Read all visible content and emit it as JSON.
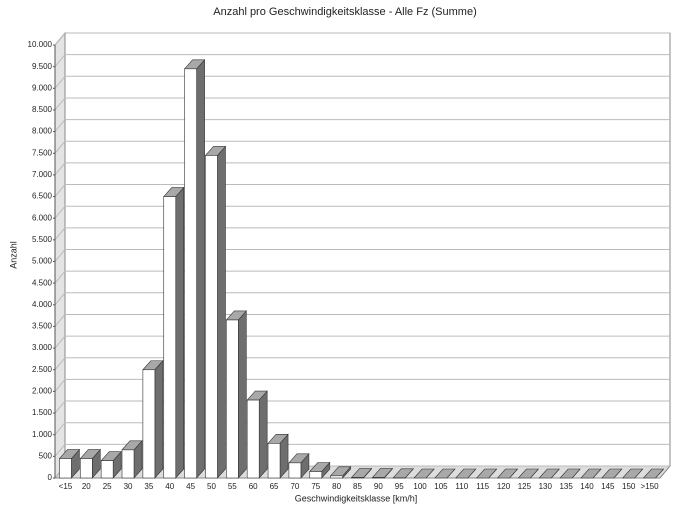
{
  "chart_data": {
    "type": "bar3d",
    "title": "Anzahl pro Geschwindigkeitsklasse - Alle Fz (Summe)",
    "x_label": "Geschwindigkeitsklasse [km/h]",
    "y_label": "Anzahl",
    "categories": [
      "<15",
      "20",
      "25",
      "30",
      "35",
      "40",
      "45",
      "50",
      "55",
      "60",
      "65",
      "70",
      "75",
      "80",
      "85",
      "90",
      "95",
      "100",
      "105",
      "110",
      "115",
      "120",
      "125",
      "130",
      "135",
      "140",
      "145",
      "150",
      ">150"
    ],
    "values": [
      450,
      450,
      400,
      650,
      2500,
      6500,
      9450,
      7450,
      3650,
      1800,
      800,
      350,
      150,
      50,
      10,
      10,
      5,
      0,
      0,
      0,
      0,
      0,
      0,
      0,
      0,
      0,
      0,
      0,
      0
    ],
    "color": "#ffffff",
    "side_color": "#6e6e6e",
    "top_color": "#a8a8a8",
    "ylim": [
      0,
      10000
    ],
    "yticks": [
      0,
      {
        "value": 500,
        "label": "500"
      },
      {
        "value": 1000,
        "label": "1.000"
      },
      {
        "value": 1500,
        "label": "1.500"
      },
      {
        "value": 2000,
        "label": "2.000"
      },
      {
        "value": 2500,
        "label": "2.500"
      },
      {
        "value": 3000,
        "label": "3.000"
      },
      {
        "value": 3500,
        "label": "3.500"
      },
      {
        "value": 4000,
        "label": "4.000"
      },
      {
        "value": 4500,
        "label": "4.500"
      },
      {
        "value": 5000,
        "label": "5.000"
      },
      {
        "value": 5500,
        "label": "5.500"
      },
      {
        "value": 6000,
        "label": "6.000"
      },
      {
        "value": 6500,
        "label": "6.500"
      },
      {
        "value": 7000,
        "label": "7.000"
      },
      {
        "value": 7500,
        "label": "7.500"
      },
      {
        "value": 8000,
        "label": "8.000"
      },
      {
        "value": 8500,
        "label": "8.500"
      },
      {
        "value": 9000,
        "label": "9.000"
      },
      {
        "value": 9500,
        "label": "9.500"
      },
      {
        "value": 10000,
        "label": "10.000"
      }
    ],
    "grid": true
  }
}
